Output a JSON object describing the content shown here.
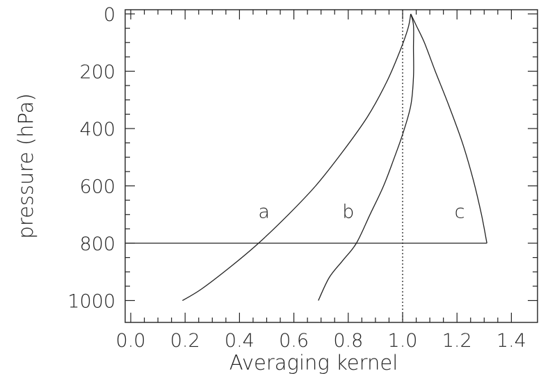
{
  "chart_data": {
    "type": "line",
    "title": "",
    "xlabel": "Averaging kernel",
    "ylabel": "pressure (hPa)",
    "xlim": [
      0.0,
      1.4
    ],
    "ylim": [
      0,
      1010
    ],
    "y_inverted": true,
    "x_ticks": [
      "0.0",
      "0.2",
      "0.4",
      "0.6",
      "0.8",
      "1.0",
      "1.2",
      "1.4"
    ],
    "y_ticks": [
      "0",
      "200",
      "400",
      "600",
      "800",
      "1000"
    ],
    "grid": false,
    "legend": "none",
    "reference_lines": [
      {
        "orientation": "vertical",
        "x": 1.0,
        "style": "dotted"
      },
      {
        "orientation": "horizontal",
        "y": 800,
        "x_range": [
          0.0,
          1.31
        ],
        "style": "solid"
      }
    ],
    "series": [
      {
        "name": "a",
        "label_position": {
          "x": 0.49,
          "y": 690
        },
        "x": [
          0.19,
          0.26,
          0.37,
          0.47,
          0.58,
          0.68,
          0.78,
          0.87,
          0.94,
          0.99,
          1.02,
          1.03
        ],
        "y": [
          1000,
          960,
          880,
          800,
          700,
          600,
          480,
          360,
          240,
          130,
          50,
          0
        ]
      },
      {
        "name": "b",
        "label_position": {
          "x": 0.8,
          "y": 690
        },
        "x": [
          0.69,
          0.73,
          0.78,
          0.83,
          0.88,
          0.93,
          0.97,
          1.0,
          1.03,
          1.04,
          1.04,
          1.04,
          1.03
        ],
        "y": [
          1000,
          920,
          860,
          800,
          700,
          600,
          500,
          420,
          320,
          220,
          120,
          40,
          0
        ]
      },
      {
        "name": "c",
        "label_position": {
          "x": 1.21,
          "y": 690
        },
        "x": [
          1.31,
          1.29,
          1.26,
          1.22,
          1.17,
          1.12,
          1.08,
          1.05,
          1.03
        ],
        "y": [
          800,
          700,
          580,
          450,
          320,
          200,
          100,
          40,
          0
        ]
      }
    ]
  }
}
